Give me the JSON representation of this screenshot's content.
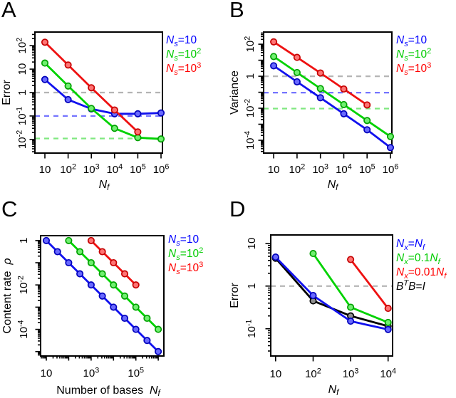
{
  "figure": {
    "background": "#ffffff",
    "panel_letters": [
      "A",
      "B",
      "C",
      "D"
    ]
  },
  "chart_data": [
    {
      "panel_label": "A",
      "type": "line",
      "x_scale": "log",
      "y_scale": "log",
      "xlabel": "*N_{f}*",
      "ylabel": "Error",
      "xlim_log10": [
        0.57,
        6.06
      ],
      "ylim_log10": [
        -2.58,
        2.58
      ],
      "x_ticks": [
        {
          "v": 1,
          "label": "10"
        },
        {
          "v": 2,
          "label": "10^{2}"
        },
        {
          "v": 3,
          "label": "10^{3}"
        },
        {
          "v": 4,
          "label": "10^{4}"
        },
        {
          "v": 5,
          "label": "10^{5}"
        },
        {
          "v": 6,
          "label": "10^{6}"
        }
      ],
      "y_ticks": [
        {
          "v": 2,
          "label": "10^{2}"
        },
        {
          "v": 1,
          "label": "10"
        },
        {
          "v": 0,
          "label": "1"
        },
        {
          "v": -1,
          "label": "10^{-1}"
        },
        {
          "v": -2,
          "label": "10^{-2}"
        }
      ],
      "x_minor": false,
      "hlines": [
        {
          "y": 1,
          "color": "#b4b4b4"
        },
        {
          "y": 0.1,
          "color": "#7575ff"
        },
        {
          "y": 0.011,
          "color": "#80e880"
        }
      ],
      "series": [
        {
          "name": "Ns=10",
          "color": "#1111ee",
          "fill": "#6969ff",
          "edge": "#0000bb",
          "x": [
            10,
            100,
            1000,
            10000,
            100000,
            1000000
          ],
          "y": [
            3.6,
            0.5,
            0.2,
            0.125,
            0.125,
            0.135
          ]
        },
        {
          "name": "Ns=10^2",
          "color": "#00d200",
          "fill": "#70f070",
          "edge": "#00a000",
          "x": [
            10,
            100,
            1000,
            10000,
            100000,
            1000000
          ],
          "y": [
            18,
            1.9,
            0.21,
            0.03,
            0.012,
            0.0105
          ]
        },
        {
          "name": "Ns=10^3",
          "color": "#ee1111",
          "fill": "#ff7474",
          "edge": "#c40000",
          "x": [
            10,
            100,
            1000,
            10000,
            100000
          ],
          "y": [
            140,
            15,
            1.6,
            0.18,
            0.021
          ]
        }
      ],
      "legend": [
        {
          "text": "*N_{s}*=10",
          "color": "#0000ff"
        },
        {
          "text": "*N_{s}*=10^{2}",
          "color": "#00cc00"
        },
        {
          "text": "*N_{s}*=10^{3}",
          "color": "#ff0000"
        }
      ]
    },
    {
      "panel_label": "B",
      "type": "line",
      "x_scale": "log",
      "y_scale": "log",
      "xlabel": "*N_{f}*",
      "ylabel": "Variance",
      "xlim_log10": [
        0.57,
        6.06
      ],
      "ylim_log10": [
        -4.8,
        2.76
      ],
      "x_ticks": [
        {
          "v": 1,
          "label": "10"
        },
        {
          "v": 2,
          "label": "10^{2}"
        },
        {
          "v": 3,
          "label": "10^{3}"
        },
        {
          "v": 4,
          "label": "10^{4}"
        },
        {
          "v": 5,
          "label": "10^{5}"
        },
        {
          "v": 6,
          "label": "10^{6}"
        }
      ],
      "y_ticks": [
        {
          "v": 2,
          "label": "10^{2}"
        },
        {
          "v": 0,
          "label": "1"
        },
        {
          "v": -2,
          "label": "10^{-2}"
        },
        {
          "v": -4,
          "label": "10^{-4}"
        }
      ],
      "x_minor": false,
      "hlines": [
        {
          "y": 1,
          "color": "#b4b4b4"
        },
        {
          "y": 0.095,
          "color": "#7575ff"
        },
        {
          "y": 0.0095,
          "color": "#80e880"
        }
      ],
      "series": [
        {
          "name": "Ns=10",
          "color": "#1111ee",
          "fill": "#6969ff",
          "edge": "#0000bb",
          "x": [
            10,
            100,
            1000,
            10000,
            100000,
            1000000
          ],
          "y": [
            4.5,
            0.45,
            0.045,
            0.0045,
            0.00045,
            3.5e-05
          ]
        },
        {
          "name": "Ns=10^2",
          "color": "#00d200",
          "fill": "#70f070",
          "edge": "#00a000",
          "x": [
            10,
            100,
            1000,
            10000,
            100000,
            1000000
          ],
          "y": [
            17,
            1.7,
            0.17,
            0.017,
            0.0017,
            0.00017
          ]
        },
        {
          "name": "Ns=10^3",
          "color": "#ee1111",
          "fill": "#ff7474",
          "edge": "#c40000",
          "x": [
            10,
            100,
            1000,
            10000,
            100000
          ],
          "y": [
            140,
            15,
            1.6,
            0.16,
            0.016
          ]
        }
      ],
      "legend": [
        {
          "text": "*N_{s}*=10",
          "color": "#0000ff"
        },
        {
          "text": "*N_{s}*=10^{2}",
          "color": "#00cc00"
        },
        {
          "text": "*N_{s}*=10^{3}",
          "color": "#ff0000"
        }
      ]
    },
    {
      "panel_label": "C",
      "type": "line",
      "x_scale": "log",
      "y_scale": "log",
      "xlabel": "Number of bases  *N_{f}*",
      "ylabel": "Content rate  *ρ*",
      "xlim_log10": [
        0.745,
        6.25
      ],
      "ylim_log10": [
        -5.2,
        0.22
      ],
      "x_ticks": [
        {
          "v": 1,
          "label": "10"
        },
        {
          "v": 3,
          "label": "10^{3}"
        },
        {
          "v": 5,
          "label": "10^{5}"
        }
      ],
      "y_ticks": [
        {
          "v": 0,
          "label": "1"
        },
        {
          "v": -2,
          "label": "10^{-2}"
        },
        {
          "v": -4,
          "label": "10^{-4}"
        }
      ],
      "x_minor": true,
      "hlines": [],
      "series": [
        {
          "name": "Ns=10",
          "color": "#1111ee",
          "fill": "#6969ff",
          "edge": "#0000bb",
          "x": [
            10,
            31.6,
            100,
            316,
            1000,
            3160,
            10000,
            31600,
            100000,
            316000,
            1000000
          ],
          "y": [
            1,
            0.316,
            0.1,
            0.0316,
            0.01,
            0.00316,
            0.001,
            0.000316,
            0.0001,
            3.16e-05,
            1e-05
          ]
        },
        {
          "name": "Ns=10^2",
          "color": "#00d200",
          "fill": "#70f070",
          "edge": "#00a000",
          "x": [
            100,
            316,
            1000,
            3160,
            10000,
            31600,
            100000,
            316000,
            1000000
          ],
          "y": [
            1,
            0.316,
            0.1,
            0.0316,
            0.01,
            0.00316,
            0.001,
            0.000316,
            0.0001
          ]
        },
        {
          "name": "Ns=10^3",
          "color": "#ee1111",
          "fill": "#ff7474",
          "edge": "#c40000",
          "x": [
            1000,
            3160,
            10000,
            31600,
            100000
          ],
          "y": [
            1,
            0.316,
            0.1,
            0.0316,
            0.01
          ]
        }
      ],
      "legend": [
        {
          "text": "*N_{s}*=10",
          "color": "#0000ff"
        },
        {
          "text": "*N_{s}*=10^{2}",
          "color": "#00cc00"
        },
        {
          "text": "*N_{s}*=10^{3}",
          "color": "#ff0000"
        }
      ]
    },
    {
      "panel_label": "D",
      "type": "line",
      "x_scale": "log",
      "y_scale": "log",
      "xlabel": "*N_{f}*",
      "ylabel": "Error",
      "xlim_log10": [
        0.87,
        4.12
      ],
      "ylim_log10": [
        -1.64,
        1.2
      ],
      "x_ticks": [
        {
          "v": 1,
          "label": "10"
        },
        {
          "v": 2,
          "label": "10^{2}"
        },
        {
          "v": 3,
          "label": "10^{3}"
        },
        {
          "v": 4,
          "label": "10^{4}"
        }
      ],
      "y_ticks": [
        {
          "v": 1,
          "label": "10"
        },
        {
          "v": 0,
          "label": "1"
        },
        {
          "v": -1,
          "label": "10^{-1}"
        }
      ],
      "x_minor": false,
      "hlines": [
        {
          "y": 1,
          "color": "#b4b4b4"
        }
      ],
      "series": [
        {
          "name": "BTB=I",
          "color": "#000000",
          "fill": "#8f8f8f",
          "edge": "#000000",
          "x": [
            10,
            100,
            1000,
            10000
          ],
          "y": [
            4.5,
            0.45,
            0.2,
            0.115
          ]
        },
        {
          "name": "Nx=Nf",
          "color": "#1111ee",
          "fill": "#6969ff",
          "edge": "#0000bb",
          "x": [
            10,
            100,
            1000,
            10000
          ],
          "y": [
            4.8,
            0.6,
            0.15,
            0.096
          ]
        },
        {
          "name": "Nx=0.1Nf",
          "color": "#00d200",
          "fill": "#70f070",
          "edge": "#00a000",
          "x": [
            100,
            1000,
            10000
          ],
          "y": [
            5.8,
            0.32,
            0.14
          ]
        },
        {
          "name": "Nx=0.01Nf",
          "color": "#ee1111",
          "fill": "#ff7474",
          "edge": "#c40000",
          "x": [
            1000,
            10000
          ],
          "y": [
            4.2,
            0.3
          ]
        }
      ],
      "legend": [
        {
          "text": "*N_{x}*=*N_{f}*",
          "color": "#0000ff"
        },
        {
          "text": "*N_{x}*=0.1*N_{f}*",
          "color": "#00cc00"
        },
        {
          "text": "*N_{x}*=0.01*N_{f}*",
          "color": "#ff0000"
        },
        {
          "text": "*B^{T}B*=*I*",
          "color": "#000000"
        }
      ]
    }
  ]
}
